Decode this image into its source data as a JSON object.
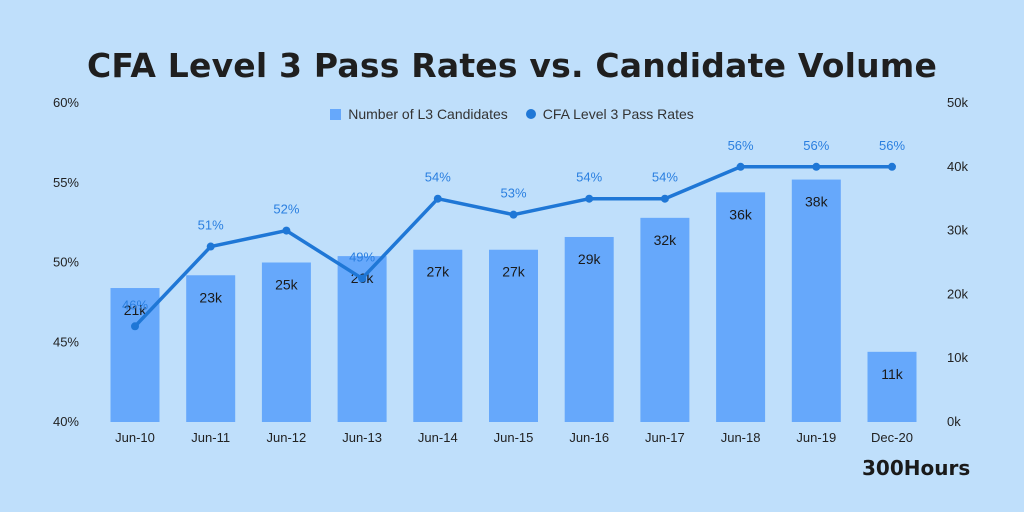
{
  "chart_data": {
    "type": "bar+line",
    "title": "CFA Level 3 Pass Rates vs. Candidate Volume",
    "categories": [
      "Jun-10",
      "Jun-11",
      "Jun-12",
      "Jun-13",
      "Jun-14",
      "Jun-15",
      "Jun-16",
      "Jun-17",
      "Jun-18",
      "Jun-19",
      "Dec-20"
    ],
    "series": [
      {
        "name": "Number of L3 Candidates",
        "type": "bar",
        "axis": "right",
        "values": [
          21,
          23,
          25,
          26,
          27,
          27,
          29,
          32,
          36,
          38,
          11
        ],
        "labels": [
          "21k",
          "23k",
          "25k",
          "26k",
          "27k",
          "27k",
          "29k",
          "32k",
          "36k",
          "38k",
          "11k"
        ]
      },
      {
        "name": "CFA Level 3 Pass Rates",
        "type": "line",
        "axis": "left",
        "values": [
          46,
          51,
          52,
          49,
          54,
          53,
          54,
          54,
          56,
          56,
          56
        ],
        "labels": [
          "46%",
          "51%",
          "52%",
          "49%",
          "54%",
          "53%",
          "54%",
          "54%",
          "56%",
          "56%",
          "56%"
        ]
      }
    ],
    "y_left": {
      "range": [
        40,
        60
      ],
      "ticks": [
        "40%",
        "45%",
        "50%",
        "55%",
        "60%"
      ]
    },
    "y_right": {
      "range": [
        0,
        50
      ],
      "ticks": [
        "0k",
        "10k",
        "20k",
        "30k",
        "40k",
        "50k"
      ]
    },
    "legend": "top-center",
    "grid": false
  },
  "brand": "300Hours",
  "colors": {
    "background": "#bfdffb",
    "bar": "#66a8fb",
    "line": "#1f77d6",
    "point_label": "#2a7fe0"
  }
}
